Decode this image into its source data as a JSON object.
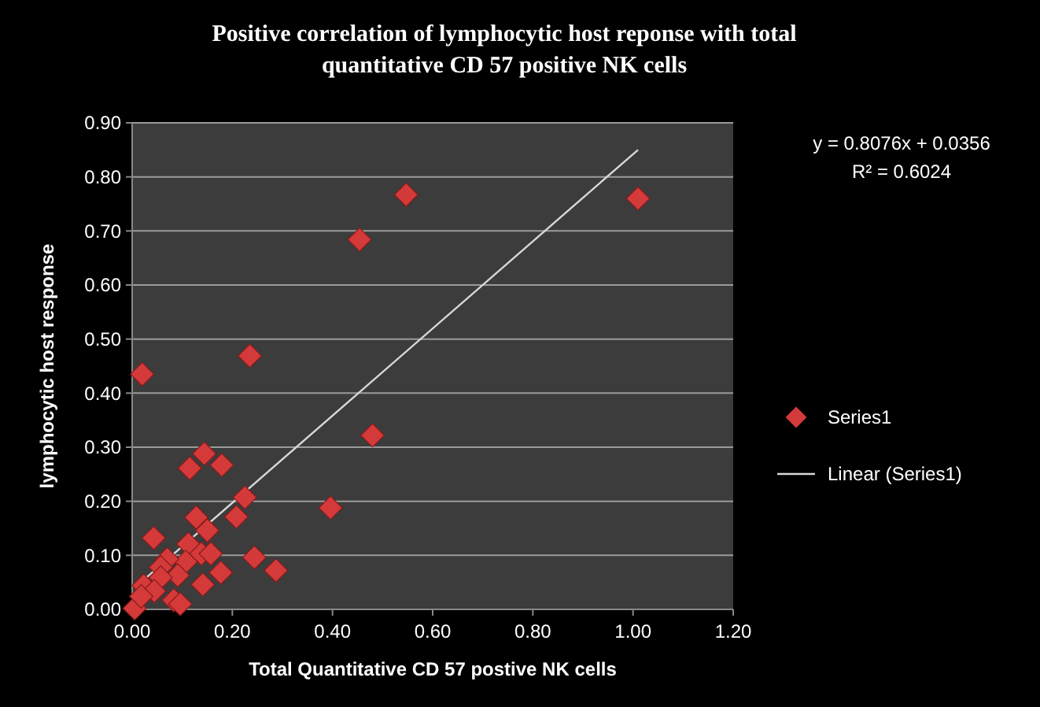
{
  "chart_data": {
    "type": "scatter",
    "title": "Positive correlation of lymphocytic host reponse with total quantitative CD 57 positive NK cells",
    "xlabel": "Total Quantitative CD 57 postive NK cells",
    "ylabel": "lymphocytic host response",
    "annotations": [
      "y = 0.8076x + 0.0356",
      "R² = 0.6024"
    ],
    "xlim": [
      0,
      1.2
    ],
    "xticks": [
      {
        "value": 0,
        "label": "0.00"
      },
      {
        "value": 0.2,
        "label": "0.20"
      },
      {
        "value": 0.4,
        "label": "0.40"
      },
      {
        "value": 0.6,
        "label": "0.60"
      },
      {
        "value": 0.8,
        "label": "0.80"
      },
      {
        "value": 1,
        "label": "1.00"
      },
      {
        "value": 1.2,
        "label": "1.20"
      }
    ],
    "ylim": [
      0,
      0.9
    ],
    "yticks": [
      {
        "value": 0,
        "label": "0.00"
      },
      {
        "value": 0.1,
        "label": "0.10"
      },
      {
        "value": 0.2,
        "label": "0.20"
      },
      {
        "value": 0.3,
        "label": "0.30"
      },
      {
        "value": 0.4,
        "label": "0.40"
      },
      {
        "value": 0.5,
        "label": "0.50"
      },
      {
        "value": 0.6,
        "label": "0.60"
      },
      {
        "value": 0.7,
        "label": "0.70"
      },
      {
        "value": 0.8,
        "label": "0.80"
      },
      {
        "value": 0.9,
        "label": "0.90"
      }
    ],
    "grid": "y",
    "legend": "right",
    "series": [
      {
        "name": "Series1",
        "marker": "diamond",
        "color": "#d43a3a",
        "x": [
          0.547,
          1.01,
          0.454,
          0.235,
          0.02,
          0.48,
          0.396,
          0.144,
          0.115,
          0.179,
          0.225,
          0.128,
          0.208,
          0.15,
          0.043,
          0.244,
          0.287,
          0.177,
          0.141,
          0.112,
          0.138,
          0.157,
          0.107,
          0.07,
          0.057,
          0.091,
          0.057,
          0.023,
          0.044,
          0.083,
          0.096,
          0.005,
          0.018
        ],
        "values": [
          0.767,
          0.76,
          0.684,
          0.469,
          0.435,
          0.322,
          0.188,
          0.288,
          0.261,
          0.267,
          0.207,
          0.17,
          0.171,
          0.146,
          0.132,
          0.096,
          0.072,
          0.068,
          0.046,
          0.121,
          0.103,
          0.103,
          0.088,
          0.093,
          0.078,
          0.063,
          0.059,
          0.044,
          0.034,
          0.017,
          0.01,
          0.002,
          0.024
        ]
      },
      {
        "name": "Linear (Series1)",
        "type": "line",
        "marker": "none",
        "line_style": "solid",
        "color": "#d8d8d8",
        "x": [
          0.005,
          1.01
        ],
        "values": [
          0.04,
          0.85
        ]
      }
    ]
  }
}
